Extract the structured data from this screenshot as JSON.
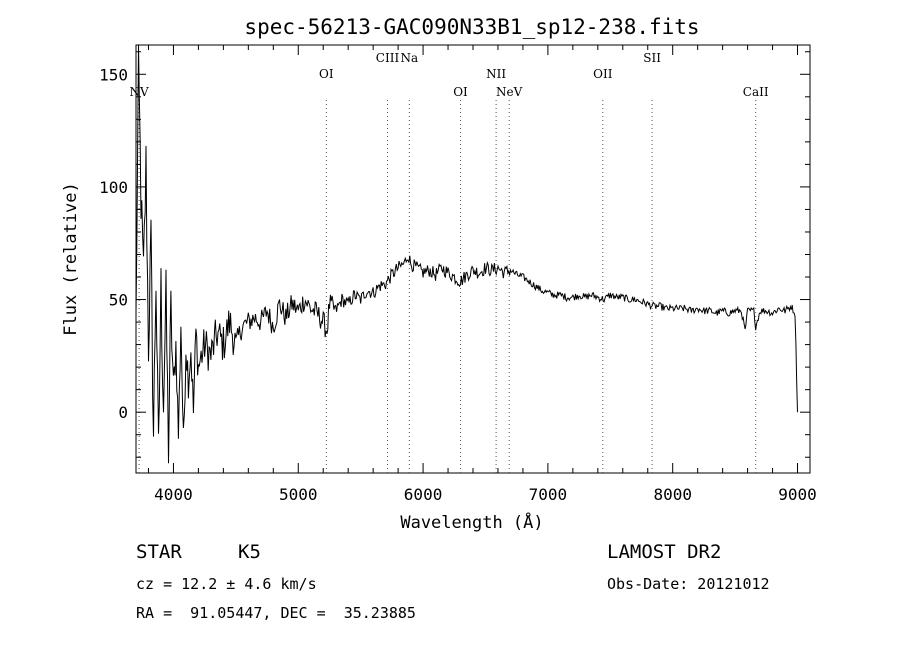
{
  "chart_data": {
    "type": "line",
    "title": "spec-56213-GAC090N33B1_sp12-238.fits",
    "xlabel": "Wavelength (Å)",
    "ylabel": "Flux (relative)",
    "xlim": [
      3700,
      9100
    ],
    "ylim": [
      -27,
      163
    ],
    "xticks": [
      4000,
      5000,
      6000,
      7000,
      8000,
      9000
    ],
    "yticks": [
      0,
      50,
      100,
      150
    ],
    "grid": false,
    "legend": "none",
    "line_color": "#000000",
    "series": [
      {
        "x": [
          3700,
          3720,
          3740,
          3760,
          3780,
          3800,
          3820,
          3840,
          3860,
          3880,
          3900,
          3920,
          3940,
          3960,
          3980,
          4000,
          4020,
          4040,
          4060,
          4080,
          4100,
          4120,
          4140,
          4160,
          4180,
          4200,
          4250,
          4300,
          4350,
          4400,
          4450,
          4500,
          4550,
          4600,
          4650,
          4700,
          4750,
          4800,
          4850,
          4900,
          4950,
          5000,
          5050,
          5100,
          5150,
          5200,
          5230,
          5250,
          5300,
          5350,
          5400,
          5450,
          5500,
          5550,
          5600,
          5650,
          5700,
          5750,
          5800,
          5850,
          5880,
          5900,
          5950,
          6000,
          6050,
          6100,
          6150,
          6200,
          6250,
          6300,
          6350,
          6400,
          6450,
          6500,
          6550,
          6600,
          6650,
          6700,
          6750,
          6800,
          6850,
          6900,
          6950,
          7000,
          7050,
          7100,
          7150,
          7200,
          7250,
          7300,
          7350,
          7400,
          7450,
          7500,
          7550,
          7600,
          7650,
          7700,
          7750,
          7800,
          7850,
          7900,
          7950,
          8000,
          8050,
          8100,
          8150,
          8200,
          8250,
          8300,
          8350,
          8400,
          8450,
          8500,
          8550,
          8580,
          8600,
          8650,
          8665,
          8700,
          8750,
          8800,
          8850,
          8900,
          8950,
          8980,
          9000
        ],
        "values": [
          40,
          155,
          95,
          60,
          110,
          30,
          75,
          -10,
          60,
          -20,
          55,
          5,
          50,
          -15,
          45,
          10,
          30,
          -10,
          40,
          -15,
          30,
          15,
          28,
          0,
          35,
          20,
          30,
          25,
          35,
          30,
          40,
          30,
          38,
          40,
          42,
          40,
          45,
          38,
          48,
          42,
          48,
          45,
          50,
          46,
          44,
          40,
          36,
          48,
          45,
          50,
          48,
          52,
          50,
          54,
          53,
          56,
          57,
          61,
          64,
          66,
          70,
          66,
          64,
          62,
          63,
          61,
          64,
          62,
          60,
          58,
          61,
          63,
          62,
          64,
          63,
          64,
          62,
          63,
          61,
          60,
          58,
          56,
          54,
          53,
          52,
          52,
          51,
          51,
          52,
          51,
          52,
          51,
          50,
          52,
          51,
          51,
          50,
          50,
          49,
          48,
          47,
          47,
          46,
          46,
          46,
          46,
          45,
          46,
          45,
          45,
          44,
          45,
          44,
          45,
          45,
          36,
          45,
          45,
          38,
          45,
          45,
          44,
          46,
          45,
          47,
          44,
          0
        ]
      }
    ],
    "annotations": [
      {
        "label": "NV",
        "x": 3725,
        "row": "low"
      },
      {
        "label": "OI",
        "x": 5225,
        "row": "mid"
      },
      {
        "label": "CIII",
        "x": 5715,
        "row": "high"
      },
      {
        "label": "Na",
        "x": 5890,
        "row": "high"
      },
      {
        "label": "OI",
        "x": 6300,
        "row": "low"
      },
      {
        "label": "NII",
        "x": 6585,
        "row": "mid"
      },
      {
        "label": "NeV",
        "x": 6690,
        "row": "low"
      },
      {
        "label": "OII",
        "x": 7440,
        "row": "mid"
      },
      {
        "label": "SII",
        "x": 7835,
        "row": "high"
      },
      {
        "label": "CaII",
        "x": 8665,
        "row": "low"
      }
    ]
  },
  "info": {
    "object_class": "STAR",
    "subclass": "K5",
    "survey": "LAMOST DR2",
    "cz": "cz = 12.2 ± 4.6 km/s",
    "obs_date": "Obs-Date: 20121012",
    "radec": "RA =  91.05447, DEC =  35.23885"
  }
}
